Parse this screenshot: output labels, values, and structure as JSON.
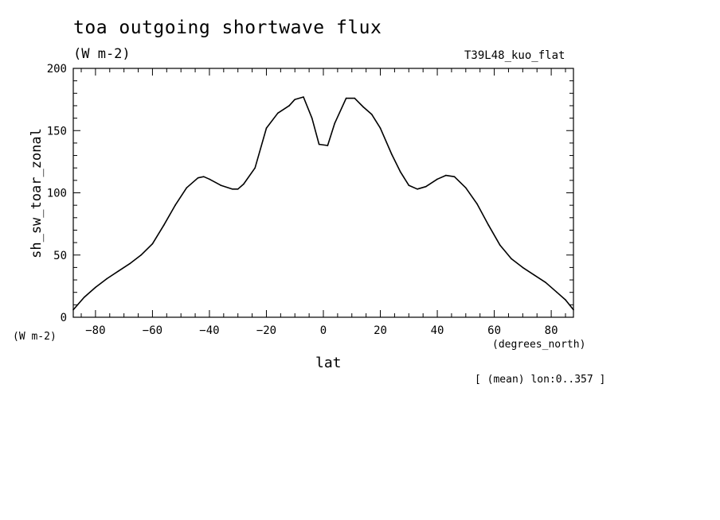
{
  "chart_data": {
    "type": "line",
    "title": "toa outgoing shortwave flux",
    "subtitle": "(W m-2)",
    "run_label": "T39L48_kuo_flat",
    "ylabel": "sh_sw_toar_zonal",
    "y_units": "(W m-2)",
    "xlabel": "lat",
    "x_units": "(degrees_north)",
    "footnote": "[ (mean) lon:0..357 ]",
    "xlim": [
      -87.8,
      87.8
    ],
    "ylim": [
      0,
      200
    ],
    "x_ticks": [
      -80,
      -60,
      -40,
      -20,
      0,
      20,
      40,
      60,
      80
    ],
    "y_ticks": [
      0,
      50,
      100,
      150,
      200
    ],
    "grid": false,
    "series": [
      {
        "x": [
          -87.8,
          -84,
          -80,
          -76,
          -72,
          -68,
          -64,
          -60,
          -56,
          -52,
          -48,
          -44,
          -42,
          -40,
          -36,
          -32,
          -30,
          -28,
          -24,
          -20,
          -16,
          -12,
          -10,
          -7,
          -4,
          -1.5,
          1.5,
          4,
          8,
          11,
          14,
          17,
          20,
          24,
          27,
          30,
          33,
          36,
          40,
          43,
          46,
          50,
          54,
          58,
          62,
          66,
          70,
          74,
          78,
          82,
          85,
          87.8
        ],
        "y": [
          6,
          16,
          24,
          31,
          37,
          43,
          50,
          59,
          74,
          90,
          104,
          112,
          113,
          111,
          106,
          103,
          103,
          107,
          120,
          152,
          164,
          170,
          175,
          177,
          160,
          139,
          138,
          156,
          176,
          176,
          169,
          163,
          152,
          131,
          117,
          106,
          103,
          105,
          111,
          114,
          113,
          104,
          91,
          74,
          58,
          47,
          40,
          34,
          28,
          20,
          14,
          6
        ]
      }
    ]
  }
}
